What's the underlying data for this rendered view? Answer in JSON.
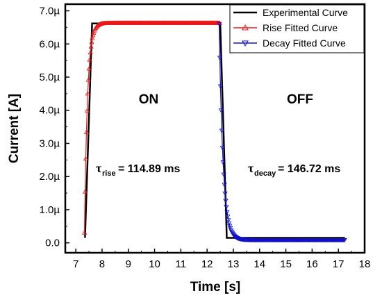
{
  "chart_data": {
    "type": "line",
    "xlabel": "Time [s]",
    "ylabel": "Current [A]",
    "xlim": [
      6.6,
      18
    ],
    "ylim": [
      -0.3,
      7.2
    ],
    "xticks": [
      "7",
      "8",
      "9",
      "10",
      "11",
      "12",
      "13",
      "14",
      "15",
      "16",
      "17",
      "18"
    ],
    "yticks": [
      "0.0",
      "1.0µ",
      "2.0µ",
      "3.0µ",
      "4.0µ",
      "5.0µ",
      "6.0µ",
      "7.0µ"
    ],
    "grid": false,
    "legend_position": "top-right",
    "series": [
      {
        "name": "Experimental Curve",
        "color": "#000000",
        "marker": "none",
        "x": [
          7.35,
          7.62,
          12.5,
          12.75,
          17.25
        ],
        "y": [
          0.15,
          6.62,
          6.62,
          0.15,
          0.15
        ]
      },
      {
        "name": "Rise Fitted Curve",
        "color": "#e8191a",
        "marker": "triangle-up",
        "function": {
          "start_x": 7.33,
          "end_x": 12.48,
          "base": 0.3,
          "amplitude": 6.33,
          "tau": 0.11489
        }
      },
      {
        "name": "Decay Fitted Curve",
        "color": "#1010c8",
        "marker": "triangle-down",
        "function": {
          "start_x": 12.46,
          "end_x": 17.25,
          "base": 0.09,
          "amplitude": 6.52,
          "tau": 0.14672
        }
      }
    ],
    "annotations": {
      "on_label": "ON",
      "off_label": "OFF",
      "tau_symbol": "τ",
      "tau_rise_sub": "rise",
      "tau_rise_value": "= 114.89 ms",
      "tau_decay_sub": "decay",
      "tau_decay_value": "= 146.72 ms"
    }
  }
}
